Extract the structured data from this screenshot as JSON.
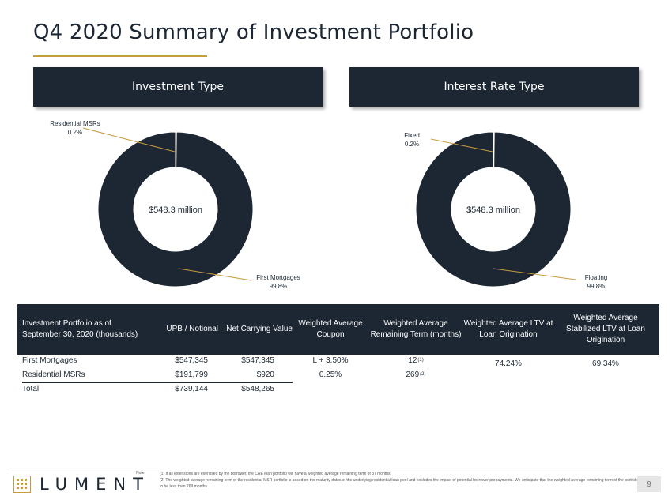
{
  "page": {
    "title": "Q4 2020 Summary of Investment Portfolio",
    "page_number": "9",
    "accent_color": "#c79c3d",
    "navy_color": "#1c2733"
  },
  "sections": {
    "investment_type": "Investment Type",
    "interest_rate_type": "Interest Rate Type"
  },
  "chart_data": [
    {
      "type": "pie",
      "title": "Investment Type",
      "center_label": "$548.3 million",
      "slices": [
        {
          "label": "First Mortgages",
          "value": 99.8,
          "value_label": "99.8%",
          "color": "#1c2733"
        },
        {
          "label": "Residential MSRs",
          "value": 0.2,
          "value_label": "0.2%",
          "color": "#c79c3d"
        }
      ]
    },
    {
      "type": "pie",
      "title": "Interest Rate Type",
      "center_label": "$548.3 million",
      "slices": [
        {
          "label": "Floating",
          "value": 99.8,
          "value_label": "99.8%",
          "color": "#1c2733"
        },
        {
          "label": "Fixed",
          "value": 0.2,
          "value_label": "0.2%",
          "color": "#c79c3d"
        }
      ]
    }
  ],
  "table": {
    "headers": {
      "portfolio": "Investment Portfolio as of September 30, 2020 (thousands)",
      "upb": "UPB / Notional",
      "ncv": "Net Carrying Value",
      "coupon": "Weighted Average Coupon",
      "term": "Weighted Average Remaining Term (months)",
      "ltv": "Weighted Average LTV at Loan Origination",
      "stab_ltv": "Weighted Average Stabilized LTV at Loan Origination"
    },
    "rows": [
      {
        "name": "First Mortgages",
        "upb": "$547,345",
        "ncv": "$547,345",
        "coupon": "L + 3.50%",
        "term": "12",
        "term_note": "(1)"
      },
      {
        "name": "Residential MSRs",
        "upb": "$191,799",
        "ncv": "$920",
        "coupon": "0.25%",
        "term": "269",
        "term_note": "(2)"
      },
      {
        "name": "Total",
        "upb": "$739,144",
        "ncv": "$548,265"
      }
    ],
    "ltv_value": "74.24%",
    "stab_ltv_value": "69.34%"
  },
  "footer": {
    "logo_text": "LUMENT",
    "note_label": "Note:",
    "note_1": "(1) If all extensions are exercised by the borrower, the CRE loan portfolio will have a weighted average remaining term of 37 months.",
    "note_2": "(2) The weighted average remaining term of the residential MSR portfolio is based on the maturity dates of the underlying residential loan pool and excludes the impact of potential borrower prepayments. We anticipate that the weighted average remaining term of the portfolio to be less than 269 months."
  }
}
